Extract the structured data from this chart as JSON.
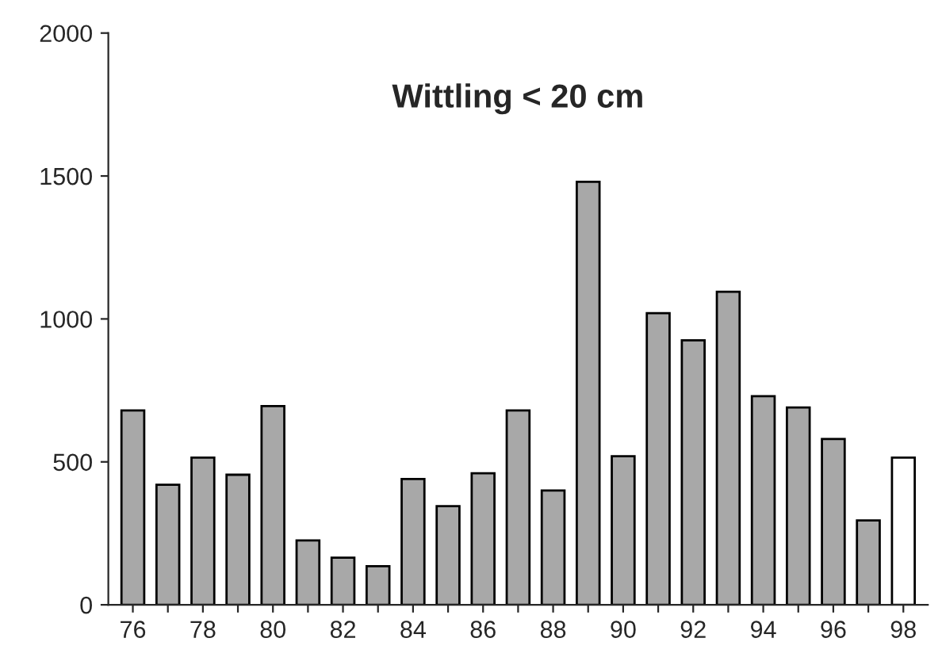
{
  "chart_data": {
    "type": "bar",
    "title": "Wittling < 20 cm",
    "categories": [
      "76",
      null,
      "78",
      null,
      "80",
      null,
      "82",
      null,
      "84",
      null,
      "86",
      null,
      "88",
      null,
      "90",
      null,
      "92",
      null,
      "94",
      null,
      "96",
      null,
      "98"
    ],
    "values": [
      680,
      420,
      515,
      455,
      695,
      225,
      165,
      135,
      440,
      345,
      460,
      680,
      400,
      1480,
      520,
      1020,
      925,
      1095,
      730,
      690,
      580,
      295,
      515
    ],
    "colors": [
      "#a8a8a8",
      "#a8a8a8",
      "#a8a8a8",
      "#a8a8a8",
      "#a8a8a8",
      "#a8a8a8",
      "#a8a8a8",
      "#a8a8a8",
      "#a8a8a8",
      "#a8a8a8",
      "#a8a8a8",
      "#a8a8a8",
      "#a8a8a8",
      "#a8a8a8",
      "#a8a8a8",
      "#a8a8a8",
      "#a8a8a8",
      "#a8a8a8",
      "#a8a8a8",
      "#a8a8a8",
      "#a8a8a8",
      "#a8a8a8",
      "#ffffff"
    ],
    "ylim": [
      0,
      2000
    ],
    "yticks": [
      0,
      500,
      1000,
      1500,
      2000
    ],
    "grid": false,
    "legend": false
  }
}
